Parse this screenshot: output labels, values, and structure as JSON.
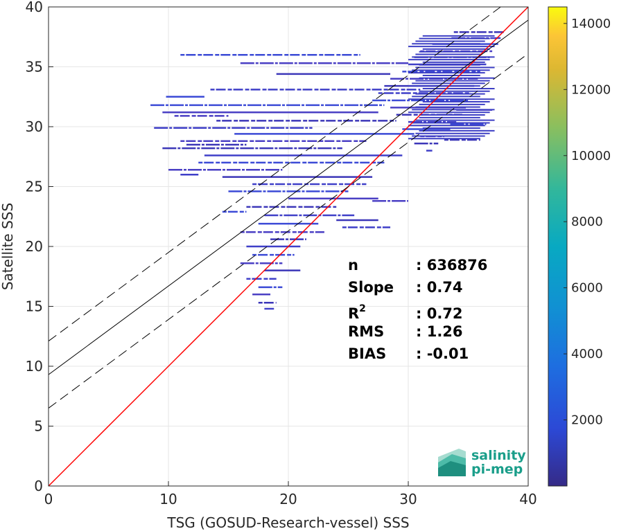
{
  "chart_data": {
    "type": "heatmap",
    "title": "",
    "xlabel": "TSG (GOSUD-Research-vessel) SSS",
    "ylabel": "Satellite SSS",
    "xlim": [
      0,
      40
    ],
    "ylim": [
      0,
      40
    ],
    "x_ticks": [
      "0",
      "10",
      "20",
      "30",
      "40"
    ],
    "y_ticks": [
      "0",
      "5",
      "10",
      "15",
      "20",
      "25",
      "30",
      "35",
      "40"
    ],
    "grid": true,
    "colorbar": {
      "range": [
        0,
        14500
      ],
      "ticks": [
        "2000",
        "4000",
        "6000",
        "8000",
        "10000",
        "12000",
        "14000"
      ],
      "colormap": "parula"
    },
    "lines": [
      {
        "name": "identity",
        "color": "#ff0000",
        "x": [
          0,
          40
        ],
        "y": [
          0,
          40
        ]
      },
      {
        "name": "regression",
        "color": "#000000",
        "style": "solid",
        "x": [
          0,
          40
        ],
        "y": [
          9.3,
          38.9
        ]
      },
      {
        "name": "upper-bound",
        "color": "#000000",
        "style": "dashed",
        "x": [
          0,
          40
        ],
        "y": [
          12.1,
          41.7
        ]
      },
      {
        "name": "lower-bound",
        "color": "#000000",
        "style": "dashed",
        "x": [
          0,
          40
        ],
        "y": [
          6.5,
          36.1
        ]
      }
    ],
    "stats": [
      {
        "label": "n",
        "value": ": 636876"
      },
      {
        "label": "Slope",
        "value": ": 0.74"
      },
      {
        "label": "R",
        "sup": "2",
        "value": ": 0.72"
      },
      {
        "label": "RMS",
        "value": ": 1.26"
      },
      {
        "label": "BIAS",
        "value": ": -0.01"
      }
    ],
    "density_segments": [
      [
        33.8,
        38.0,
        37.9
      ],
      [
        33.6,
        37.7,
        37.4
      ],
      [
        32.0,
        37.5,
        36.9
      ],
      [
        31.0,
        37.0,
        36.3
      ],
      [
        30.5,
        36.8,
        35.8
      ],
      [
        30.0,
        36.5,
        35.2
      ],
      [
        29.5,
        36.0,
        34.6
      ],
      [
        28.5,
        35.8,
        34.0
      ],
      [
        28.0,
        35.5,
        33.4
      ],
      [
        27.5,
        35.2,
        32.8
      ],
      [
        27.0,
        35.0,
        32.2
      ],
      [
        28.5,
        34.8,
        31.6
      ],
      [
        29.0,
        34.5,
        31.0
      ],
      [
        30.0,
        34.0,
        30.4
      ],
      [
        29.5,
        33.5,
        29.8
      ],
      [
        31.0,
        33.0,
        29.2
      ],
      [
        30.5,
        32.5,
        28.6
      ],
      [
        31.5,
        32.0,
        28.0
      ],
      [
        11.0,
        26.0,
        36.0
      ],
      [
        16.0,
        30.0,
        35.3
      ],
      [
        19.0,
        28.5,
        34.4
      ],
      [
        13.5,
        31.0,
        33.1
      ],
      [
        8.5,
        28.0,
        31.8
      ],
      [
        9.5,
        27.5,
        31.2
      ],
      [
        14.0,
        29.0,
        30.5
      ],
      [
        8.8,
        22.0,
        29.9
      ],
      [
        15.5,
        30.5,
        29.4
      ],
      [
        11.0,
        26.5,
        28.8
      ],
      [
        9.5,
        24.5,
        28.2
      ],
      [
        13.0,
        29.5,
        27.6
      ],
      [
        12.5,
        28.0,
        27.0
      ],
      [
        10.0,
        19.5,
        26.4
      ],
      [
        14.5,
        27.0,
        25.8
      ],
      [
        17.0,
        26.5,
        25.2
      ],
      [
        15.0,
        25.0,
        24.6
      ],
      [
        20.0,
        27.5,
        24.0
      ],
      [
        16.5,
        24.0,
        23.3
      ],
      [
        18.0,
        25.5,
        22.6
      ],
      [
        17.5,
        22.5,
        21.9
      ],
      [
        16.0,
        23.0,
        21.2
      ],
      [
        18.5,
        21.5,
        20.6
      ],
      [
        16.5,
        21.0,
        20.0
      ],
      [
        17.0,
        20.5,
        19.3
      ],
      [
        16.0,
        19.5,
        18.6
      ],
      [
        18.0,
        21.0,
        18.0
      ],
      [
        16.5,
        19.0,
        17.3
      ],
      [
        17.5,
        19.5,
        16.6
      ],
      [
        17.0,
        18.5,
        16.0
      ],
      [
        17.5,
        19.0,
        15.3
      ],
      [
        18.0,
        18.8,
        14.8
      ],
      [
        9.8,
        13.0,
        32.5
      ],
      [
        10.5,
        15.0,
        30.9
      ],
      [
        11.5,
        16.5,
        28.5
      ],
      [
        11.0,
        12.5,
        26.0
      ],
      [
        14.5,
        16.5,
        22.9
      ],
      [
        27.0,
        30.0,
        23.8
      ],
      [
        24.0,
        27.5,
        22.2
      ],
      [
        24.5,
        28.5,
        21.6
      ],
      [
        33.5,
        36.5,
        30.2
      ],
      [
        34.0,
        37.0,
        31.4
      ],
      [
        33.0,
        36.0,
        28.9
      ]
    ]
  },
  "logo": {
    "line1": "salinity",
    "line2": "pi-mep"
  }
}
